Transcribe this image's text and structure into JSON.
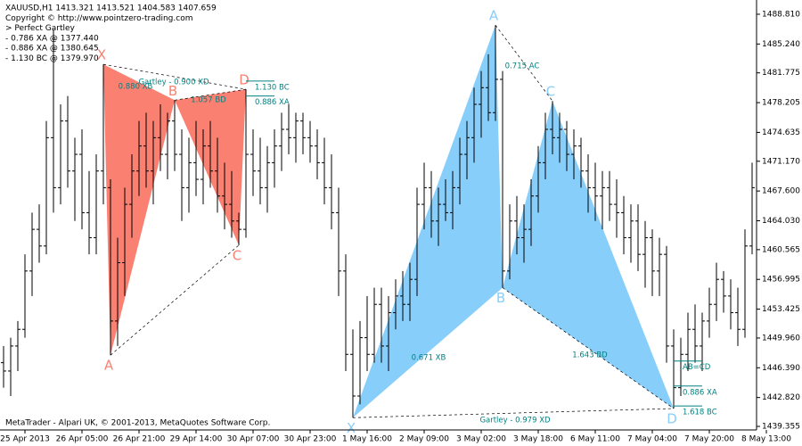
{
  "chart_data": {
    "type": "ohlc",
    "info": [
      "XAUUSD,H1  1413.321 1413.521 1404.583 1407.659",
      "Copyright © http://www.pointzero-trading.com",
      "> Perfect Gartley",
      "- 0.786 XA @ 1377.440",
      "- 0.886 XA @ 1380.645",
      "- 1.130 BC @ 1379.970"
    ],
    "footer": "MetaTrader - Alpari UK, © 2001-2013, MetaQuotes Software Corp.",
    "ylim": [
      1438.93,
      1490.52
    ],
    "yticks": [
      {
        "value": 1488.81,
        "label": "1488.810"
      },
      {
        "value": 1485.24,
        "label": "1485.240"
      },
      {
        "value": 1481.775,
        "label": "1481.775"
      },
      {
        "value": 1478.205,
        "label": "1478.205"
      },
      {
        "value": 1474.635,
        "label": "1474.635"
      },
      {
        "value": 1471.17,
        "label": "1471.170"
      },
      {
        "value": 1467.6,
        "label": "1467.600"
      },
      {
        "value": 1464.03,
        "label": "1464.030"
      },
      {
        "value": 1460.565,
        "label": "1460.565"
      },
      {
        "value": 1456.995,
        "label": "1456.995"
      },
      {
        "value": 1453.425,
        "label": "1453.425"
      },
      {
        "value": 1449.96,
        "label": "1449.960"
      },
      {
        "value": 1446.39,
        "label": "1446.390"
      },
      {
        "value": 1442.82,
        "label": "1442.820"
      },
      {
        "value": 1439.355,
        "label": "1439.355"
      }
    ],
    "xticks": [
      {
        "value": 3,
        "label": "25 Apr 2013"
      },
      {
        "value": 11,
        "label": "26 Apr 05:00"
      },
      {
        "value": 19,
        "label": "26 Apr 21:00"
      },
      {
        "value": 27,
        "label": "29 Apr 14:00"
      },
      {
        "value": 35,
        "label": "30 Apr 07:00"
      },
      {
        "value": 43,
        "label": "30 Apr 23:00"
      },
      {
        "value": 51,
        "label": "1 May 16:00"
      },
      {
        "value": 59,
        "label": "2 May 09:00"
      },
      {
        "value": 67,
        "label": "3 May 02:00"
      },
      {
        "value": 75,
        "label": "3 May 18:00"
      },
      {
        "value": 83,
        "label": "6 May 11:00"
      },
      {
        "value": 91,
        "label": "7 May 04:00"
      },
      {
        "value": 99,
        "label": "7 May 20:00"
      },
      {
        "value": 107,
        "label": "8 May 13:00"
      }
    ],
    "ohlc": [
      [
        1447,
        1449,
        1444,
        1446
      ],
      [
        1446,
        1450,
        1443,
        1449
      ],
      [
        1449,
        1452,
        1446,
        1451
      ],
      [
        1451,
        1460,
        1450,
        1458
      ],
      [
        1458,
        1465,
        1455,
        1463
      ],
      [
        1463,
        1466,
        1459,
        1461
      ],
      [
        1461,
        1476,
        1460,
        1474
      ],
      [
        1474,
        1487,
        1465,
        1468
      ],
      [
        1468,
        1478,
        1466,
        1476
      ],
      [
        1476,
        1479,
        1468,
        1470
      ],
      [
        1470,
        1474,
        1464,
        1472
      ],
      [
        1472,
        1475,
        1463,
        1465
      ],
      [
        1465,
        1470,
        1460,
        1462
      ],
      [
        1462,
        1472,
        1460,
        1470
      ],
      [
        1470,
        1482.8,
        1466,
        1468
      ],
      [
        1468,
        1469,
        1447.9,
        1452
      ],
      [
        1452,
        1462,
        1449,
        1459
      ],
      [
        1459,
        1468,
        1455,
        1466
      ],
      [
        1466,
        1472,
        1462,
        1470
      ],
      [
        1470,
        1476,
        1467,
        1473
      ],
      [
        1473,
        1477,
        1468,
        1470
      ],
      [
        1470,
        1476,
        1466,
        1474
      ],
      [
        1474,
        1478,
        1470,
        1472
      ],
      [
        1472,
        1477,
        1469,
        1476
      ],
      [
        1476,
        1478.5,
        1470,
        1472
      ],
      [
        1472,
        1475,
        1464,
        1468
      ],
      [
        1468,
        1474,
        1465,
        1471
      ],
      [
        1471,
        1476,
        1467,
        1469
      ],
      [
        1469,
        1475,
        1466,
        1473
      ],
      [
        1473,
        1476,
        1468,
        1470
      ],
      [
        1470,
        1474,
        1465,
        1467
      ],
      [
        1467,
        1471,
        1463,
        1466
      ],
      [
        1466,
        1470,
        1462,
        1464
      ],
      [
        1464,
        1465,
        1461.1,
        1463
      ],
      [
        1463,
        1479.8,
        1462,
        1472
      ],
      [
        1472,
        1475,
        1467,
        1470
      ],
      [
        1470,
        1474,
        1466,
        1468
      ],
      [
        1468,
        1473,
        1465,
        1471
      ],
      [
        1471,
        1475,
        1468,
        1473
      ],
      [
        1473,
        1477,
        1470,
        1475
      ],
      [
        1475,
        1478,
        1472,
        1474
      ],
      [
        1474,
        1477,
        1471,
        1476
      ],
      [
        1476,
        1477,
        1472,
        1474
      ],
      [
        1474,
        1476,
        1471,
        1473
      ],
      [
        1473,
        1475,
        1469,
        1471
      ],
      [
        1471,
        1474,
        1466,
        1468
      ],
      [
        1468,
        1472,
        1463,
        1465
      ],
      [
        1465,
        1468,
        1455,
        1458
      ],
      [
        1458,
        1460,
        1446,
        1448
      ],
      [
        1448,
        1451,
        1440.4,
        1443
      ],
      [
        1443,
        1452,
        1442,
        1450
      ],
      [
        1450,
        1455,
        1446,
        1448
      ],
      [
        1448,
        1456,
        1447,
        1454
      ],
      [
        1454,
        1456,
        1447,
        1449
      ],
      [
        1449,
        1455,
        1446,
        1453
      ],
      [
        1453,
        1457,
        1451,
        1455
      ],
      [
        1455,
        1458,
        1452,
        1454
      ],
      [
        1454,
        1459,
        1452,
        1457
      ],
      [
        1457,
        1468,
        1455,
        1466
      ],
      [
        1466,
        1471,
        1463,
        1468
      ],
      [
        1468,
        1470,
        1462,
        1464
      ],
      [
        1464,
        1468,
        1461,
        1466
      ],
      [
        1466,
        1469,
        1464,
        1465
      ],
      [
        1465,
        1470,
        1463,
        1468
      ],
      [
        1468,
        1474,
        1466,
        1472
      ],
      [
        1472,
        1476,
        1469,
        1474
      ],
      [
        1474,
        1480,
        1471,
        1478
      ],
      [
        1478,
        1482,
        1474,
        1480
      ],
      [
        1480,
        1484,
        1476,
        1477
      ],
      [
        1477,
        1487.5,
        1476,
        1481
      ],
      [
        1481,
        1482,
        1456,
        1458
      ],
      [
        1458,
        1466,
        1457,
        1464
      ],
      [
        1464,
        1467,
        1460,
        1462
      ],
      [
        1462,
        1466,
        1459,
        1463
      ],
      [
        1463,
        1469,
        1461,
        1467
      ],
      [
        1467,
        1473,
        1465,
        1471
      ],
      [
        1471,
        1477,
        1469,
        1475
      ],
      [
        1475,
        1478.4,
        1472,
        1474
      ],
      [
        1474,
        1477,
        1471,
        1475
      ],
      [
        1475,
        1476,
        1470,
        1472
      ],
      [
        1472,
        1475,
        1469,
        1473
      ],
      [
        1473,
        1474,
        1468,
        1470
      ],
      [
        1470,
        1472,
        1465,
        1468
      ],
      [
        1468,
        1471,
        1464,
        1467
      ],
      [
        1467,
        1470,
        1463,
        1468
      ],
      [
        1468,
        1470,
        1464,
        1466
      ],
      [
        1466,
        1469,
        1462,
        1465
      ],
      [
        1465,
        1467,
        1460,
        1462
      ],
      [
        1462,
        1466,
        1459,
        1464
      ],
      [
        1464,
        1466,
        1458,
        1460
      ],
      [
        1460,
        1464,
        1456,
        1462
      ],
      [
        1462,
        1463,
        1455,
        1458
      ],
      [
        1458,
        1462,
        1455,
        1460
      ],
      [
        1460,
        1461,
        1447,
        1449
      ],
      [
        1449,
        1451,
        1441.5,
        1444
      ],
      [
        1444,
        1450,
        1443,
        1448
      ],
      [
        1448,
        1453,
        1446,
        1451
      ],
      [
        1451,
        1454,
        1447,
        1449
      ],
      [
        1449,
        1453,
        1446,
        1452
      ],
      [
        1452,
        1456,
        1450,
        1454
      ],
      [
        1454,
        1459,
        1452,
        1457
      ],
      [
        1457,
        1458,
        1453,
        1455
      ],
      [
        1455,
        1457,
        1451,
        1453
      ],
      [
        1453,
        1456,
        1449,
        1451
      ],
      [
        1451,
        1463,
        1450,
        1461
      ],
      [
        1461,
        1471,
        1460,
        1468
      ]
    ],
    "patterns": [
      {
        "color": "#fa8072",
        "points": [
          {
            "label": "X",
            "bar": 14,
            "price": 1482.8
          },
          {
            "label": "A",
            "bar": 15,
            "price": 1447.9
          },
          {
            "label": "B",
            "bar": 24,
            "price": 1478.5
          },
          {
            "label": "C",
            "bar": 33,
            "price": 1461.1
          },
          {
            "label": "D",
            "bar": 34,
            "price": 1479.8
          }
        ],
        "ratios": [
          "0.880 XB",
          "Gartley - 0.900 XD",
          "1.057 BD"
        ],
        "levels": [
          {
            "label": "1.130 BC",
            "price": 1480.8
          },
          {
            "label": "0.886 XA",
            "price": 1479.0
          }
        ]
      },
      {
        "color": "#87cefa",
        "points": [
          {
            "label": "X",
            "bar": 49,
            "price": 1440.4
          },
          {
            "label": "A",
            "bar": 69,
            "price": 1487.5
          },
          {
            "label": "B",
            "bar": 70,
            "price": 1456
          },
          {
            "label": "C",
            "bar": 77,
            "price": 1478.4
          },
          {
            "label": "D",
            "bar": 94,
            "price": 1441.5
          }
        ],
        "ratios": [
          "0.715 AC",
          "0.671 XB",
          "1.643 BD",
          "Gartley - 0.979 XD"
        ],
        "levels": [
          {
            "label": "AB=CD",
            "price": 1447.2
          },
          {
            "label": "0.886 XA",
            "price": 1444.2
          },
          {
            "label": "1.618 BC",
            "price": 1441.8
          }
        ]
      }
    ]
  }
}
